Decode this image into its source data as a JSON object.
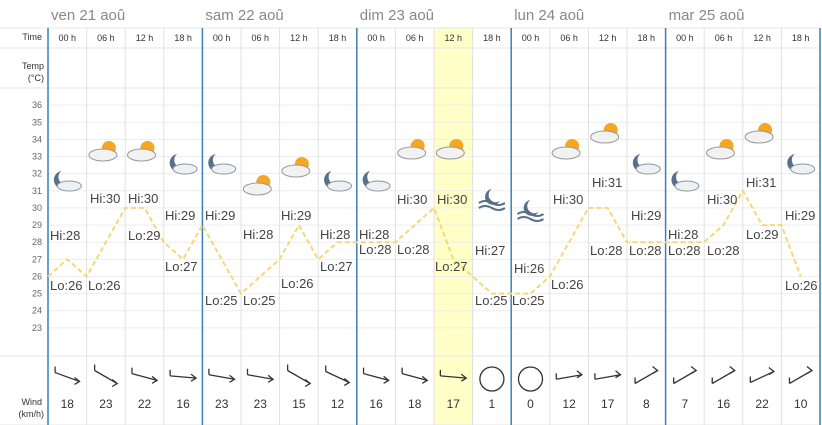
{
  "chart_data": {
    "type": "line",
    "row_labels": {
      "time": "Time",
      "temp": [
        "Temp",
        "(°C)"
      ],
      "wind": [
        "Wind",
        "(km/h)"
      ]
    },
    "days": [
      "ven 21 aoû",
      "sam 22 aoû",
      "dim 23 aoû",
      "lun 24 aoû",
      "mar 25 aoû"
    ],
    "hours": [
      "00 h",
      "06 h",
      "12 h",
      "18 h"
    ],
    "ylim": [
      22,
      37
    ],
    "yticks": [
      23,
      24,
      25,
      26,
      27,
      28,
      29,
      30,
      31,
      32,
      33,
      34,
      35,
      36
    ],
    "grid": true,
    "series": [
      {
        "name": "Temp",
        "color": "#f7d774",
        "values": [
          26,
          27,
          26,
          28,
          30,
          30,
          28,
          27,
          29,
          27,
          25,
          26,
          27,
          29,
          27,
          28,
          28,
          28,
          28,
          29,
          30,
          27,
          26,
          25,
          25,
          25,
          26,
          28,
          30,
          30,
          28,
          28,
          28,
          28,
          28,
          29,
          31,
          29,
          29,
          26
        ]
      }
    ],
    "annotations": [
      "Hi:28",
      "Lo:26",
      "Hi:30",
      "Lo:26",
      "Hi:30",
      "Lo:29",
      "Hi:29",
      "Lo:27",
      "Hi:29",
      "Lo:25",
      "Hi:28",
      "Lo:25",
      "Hi:29",
      "Lo:26",
      "Hi:28",
      "Lo:27",
      "Hi:28",
      "Lo:28",
      "Hi:30",
      "Lo:28",
      "Hi:30",
      "Lo:27",
      "Hi:27",
      "Lo:25",
      "Hi:26",
      "Lo:25",
      "Hi:30",
      "Lo:26",
      "Hi:31",
      "Lo:28",
      "Hi:29",
      "Lo:28",
      "Hi:28",
      "Lo:28",
      "Hi:30",
      "Lo:28",
      "Hi:31",
      "Lo:29",
      "Hi:29",
      "Lo:26"
    ],
    "wind": [
      18,
      23,
      22,
      16,
      23,
      23,
      15,
      12,
      16,
      18,
      17,
      1,
      0,
      12,
      17,
      8,
      7,
      16,
      22,
      10
    ],
    "highlight": 10
  }
}
